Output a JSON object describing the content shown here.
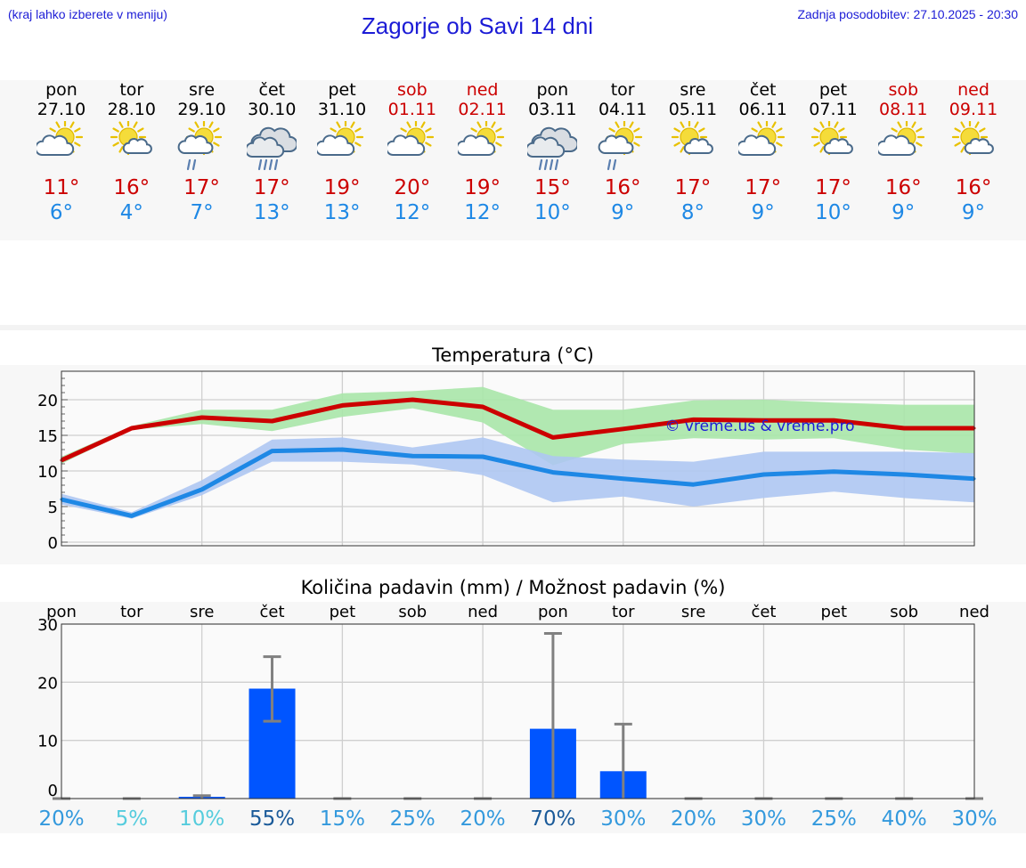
{
  "header": {
    "hint": "(kraj lahko izberete v meniju)",
    "title": "Zagorje ob Savi 14 dni",
    "updated": "Zadnja posodobitev: 27.10.2025 - 20:30"
  },
  "colors": {
    "max_temp": "#cc0000",
    "min_temp": "#1e88e5",
    "max_band": "#a8e6a8",
    "min_band": "#aec6f2",
    "bar": "#0055ff",
    "error_bar": "#808080"
  },
  "days": [
    {
      "name": "pon",
      "date": "27.10",
      "weekend": false,
      "icon": "partly-cloudy-icon",
      "tmax": "11°",
      "tmin": "6°"
    },
    {
      "name": "tor",
      "date": "28.10",
      "weekend": false,
      "icon": "mostly-sunny-icon",
      "tmax": "16°",
      "tmin": "4°"
    },
    {
      "name": "sre",
      "date": "29.10",
      "weekend": false,
      "icon": "sun-cloud-rain-icon",
      "tmax": "17°",
      "tmin": "7°"
    },
    {
      "name": "čet",
      "date": "30.10",
      "weekend": false,
      "icon": "cloudy-rain-icon",
      "tmax": "17°",
      "tmin": "13°"
    },
    {
      "name": "pet",
      "date": "31.10",
      "weekend": false,
      "icon": "partly-cloudy-icon",
      "tmax": "19°",
      "tmin": "13°"
    },
    {
      "name": "sob",
      "date": "01.11",
      "weekend": true,
      "icon": "partly-cloudy-icon",
      "tmax": "20°",
      "tmin": "12°"
    },
    {
      "name": "ned",
      "date": "02.11",
      "weekend": true,
      "icon": "partly-cloudy-icon",
      "tmax": "19°",
      "tmin": "12°"
    },
    {
      "name": "pon",
      "date": "03.11",
      "weekend": false,
      "icon": "cloudy-rain-icon",
      "tmax": "15°",
      "tmin": "10°"
    },
    {
      "name": "tor",
      "date": "04.11",
      "weekend": false,
      "icon": "sun-cloud-rain-icon",
      "tmax": "16°",
      "tmin": "9°"
    },
    {
      "name": "sre",
      "date": "05.11",
      "weekend": false,
      "icon": "mostly-sunny-icon",
      "tmax": "17°",
      "tmin": "8°"
    },
    {
      "name": "čet",
      "date": "06.11",
      "weekend": false,
      "icon": "partly-cloudy-icon",
      "tmax": "17°",
      "tmin": "9°"
    },
    {
      "name": "pet",
      "date": "07.11",
      "weekend": false,
      "icon": "mostly-sunny-icon",
      "tmax": "17°",
      "tmin": "10°"
    },
    {
      "name": "sob",
      "date": "08.11",
      "weekend": true,
      "icon": "partly-cloudy-icon",
      "tmax": "16°",
      "tmin": "9°"
    },
    {
      "name": "ned",
      "date": "09.11",
      "weekend": true,
      "icon": "mostly-sunny-icon",
      "tmax": "16°",
      "tmin": "9°"
    }
  ],
  "chart_data": [
    {
      "type": "line",
      "title": "Temperatura (°C)",
      "watermark": "© vreme.us & vreme.pro",
      "x": [
        0,
        1,
        2,
        3,
        4,
        5,
        6,
        7,
        8,
        9,
        10,
        11,
        12,
        13
      ],
      "ylim": [
        -0.5,
        24
      ],
      "yticks": [
        "0",
        "5",
        "10",
        "15",
        "20"
      ],
      "grid": true,
      "series": [
        {
          "values": [
            11.5,
            16,
            17.5,
            17,
            19.2,
            20,
            19,
            14.7,
            15.9,
            17.2,
            17.1,
            17.1,
            16,
            16
          ]
        },
        {
          "values": [
            6,
            3.7,
            7.4,
            12.8,
            13,
            12.1,
            12,
            9.8,
            8.9,
            8.1,
            9.5,
            9.9,
            9.5,
            8.9
          ]
        }
      ],
      "bands": [
        {
          "lower": [
            11,
            15.8,
            16.6,
            15.6,
            17.6,
            18.8,
            16.8,
            10.8,
            13.8,
            14.6,
            14.4,
            14.6,
            13,
            12.4
          ],
          "upper": [
            12,
            16.3,
            18.6,
            18.6,
            20.9,
            21.2,
            21.8,
            18.6,
            18.6,
            19.9,
            20,
            19.6,
            19.3,
            19.3
          ]
        },
        {
          "lower": [
            5.3,
            3.3,
            6.6,
            11.3,
            11.3,
            10.9,
            9.4,
            5.6,
            6.4,
            5,
            6.2,
            7.1,
            6.2,
            5.6
          ],
          "upper": [
            6.8,
            4.2,
            8.7,
            14.4,
            14.7,
            13.3,
            14.7,
            12.1,
            11.6,
            11.3,
            12.7,
            12.7,
            12.7,
            12.5
          ]
        }
      ]
    },
    {
      "type": "bar",
      "title": "Količina padavin (mm) / Možnost padavin (%)",
      "categories": [
        "pon",
        "tor",
        "sre",
        "čet",
        "pet",
        "sob",
        "ned",
        "pon",
        "tor",
        "sre",
        "čet",
        "pet",
        "sob",
        "ned"
      ],
      "values": [
        0,
        0,
        0.3,
        18.9,
        0,
        0,
        0,
        12,
        4.7,
        0,
        0,
        0,
        0,
        0
      ],
      "error_high": [
        0,
        0,
        0.5,
        24.4,
        0,
        0,
        0,
        28.4,
        12.8,
        0,
        0,
        0,
        0,
        0
      ],
      "error_low": [
        0,
        0,
        0,
        13.3,
        0,
        0,
        0,
        0,
        0,
        0,
        0,
        0,
        0,
        0
      ],
      "ylim": [
        0,
        30
      ],
      "yticks": [
        "0",
        "10",
        "20",
        "30"
      ],
      "probability": [
        "20%",
        "5%",
        "10%",
        "55%",
        "15%",
        "25%",
        "20%",
        "70%",
        "30%",
        "20%",
        "30%",
        "25%",
        "40%",
        "30%"
      ],
      "probability_colors": [
        "#3399dd",
        "#55ccdd",
        "#55ccdd",
        "#1a5a99",
        "#3399dd",
        "#3399dd",
        "#3399dd",
        "#1a5a99",
        "#3399dd",
        "#3399dd",
        "#3399dd",
        "#3399dd",
        "#3399dd",
        "#3399dd"
      ],
      "grid": true
    }
  ]
}
